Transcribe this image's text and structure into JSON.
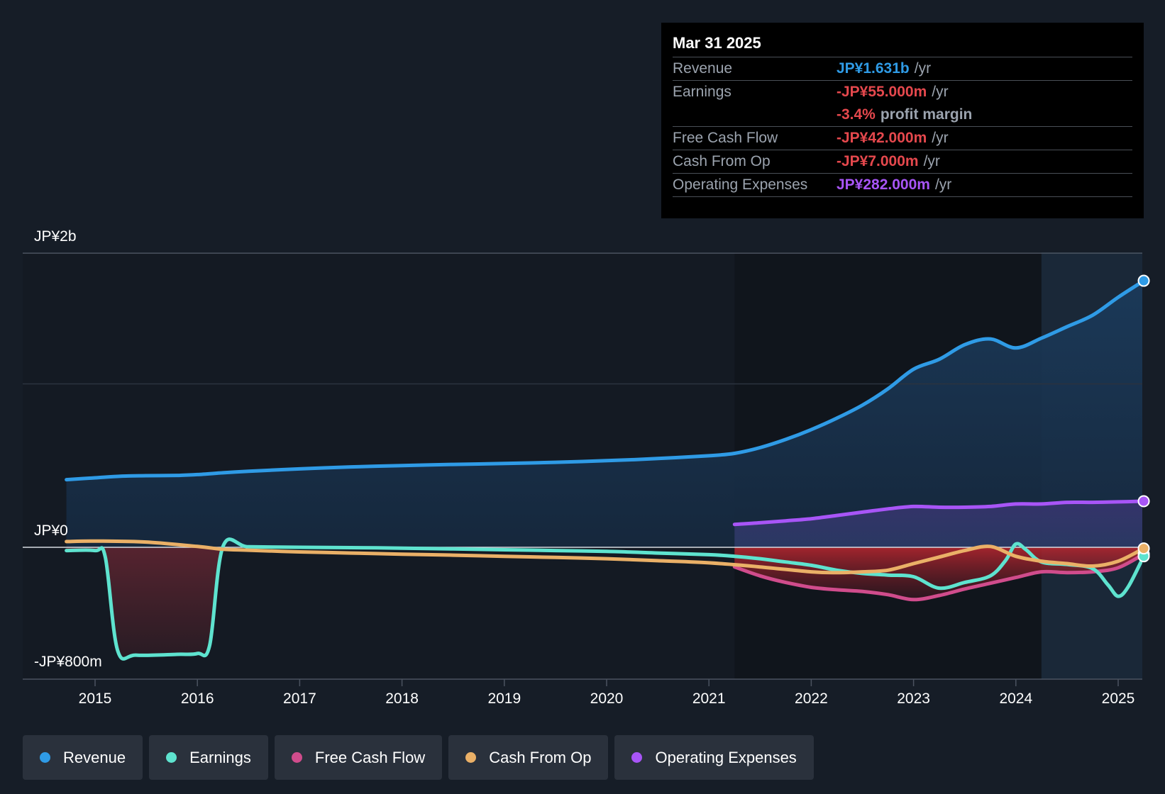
{
  "tooltip": {
    "date": "Mar 31 2025",
    "rows": [
      {
        "label": "Revenue",
        "value": "JP¥1.631b",
        "unit": "/yr",
        "color": "#2f9be6"
      },
      {
        "label": "Earnings",
        "value": "-JP¥55.000m",
        "unit": "/yr",
        "color": "#e5484d"
      },
      {
        "label": "",
        "value": "-3.4%",
        "unit": "profit margin",
        "color": "#e5484d"
      },
      {
        "label": "Free Cash Flow",
        "value": "-JP¥42.000m",
        "unit": "/yr",
        "color": "#e5484d"
      },
      {
        "label": "Cash From Op",
        "value": "-JP¥7.000m",
        "unit": "/yr",
        "color": "#e5484d"
      },
      {
        "label": "Operating Expenses",
        "value": "JP¥282.000m",
        "unit": "/yr",
        "color": "#a855f7"
      }
    ]
  },
  "legend": [
    {
      "label": "Revenue",
      "color": "#2f9be6"
    },
    {
      "label": "Earnings",
      "color": "#5ee3cf"
    },
    {
      "label": "Free Cash Flow",
      "color": "#d04c8c"
    },
    {
      "label": "Cash From Op",
      "color": "#eab067"
    },
    {
      "label": "Operating Expenses",
      "color": "#a855f7"
    }
  ],
  "chart_data": {
    "type": "line",
    "y_tick_labels": [
      "JP¥2b",
      "JP¥0",
      "-JP¥800m"
    ],
    "ylim": [
      -800,
      1800
    ],
    "y_unit": "JP¥m",
    "x_tick_labels": [
      "2015",
      "2016",
      "2017",
      "2018",
      "2019",
      "2020",
      "2021",
      "2022",
      "2023",
      "2024",
      "2025"
    ],
    "xlim": [
      2014.7,
      2025.25
    ],
    "forecast_shade_start": 2024.25,
    "grid": "horizontal",
    "series": [
      {
        "name": "Revenue",
        "color": "#2f9be6",
        "x": [
          2014.72,
          2015.0,
          2015.25,
          2015.5,
          2015.8,
          2016.0,
          2016.25,
          2016.5,
          2017.0,
          2017.5,
          2018.0,
          2018.5,
          2019.0,
          2019.5,
          2020.0,
          2020.5,
          2021.0,
          2021.25,
          2021.5,
          2021.75,
          2022.0,
          2022.25,
          2022.5,
          2022.75,
          2023.0,
          2023.25,
          2023.5,
          2023.75,
          2024.0,
          2024.25,
          2024.5,
          2024.75,
          2025.0,
          2025.25
        ],
        "y": [
          414,
          425,
          435,
          438,
          440,
          445,
          456,
          465,
          480,
          492,
          500,
          507,
          513,
          520,
          530,
          543,
          560,
          575,
          610,
          660,
          720,
          790,
          870,
          970,
          1090,
          1150,
          1240,
          1275,
          1220,
          1280,
          1350,
          1420,
          1530,
          1631
        ]
      },
      {
        "name": "Earnings",
        "color": "#5ee3cf",
        "x": [
          2014.72,
          2015.0,
          2015.1,
          2015.22,
          2015.4,
          2015.8,
          2016.0,
          2016.12,
          2016.25,
          2016.5,
          2017.0,
          2017.5,
          2018.0,
          2018.5,
          2019.0,
          2019.5,
          2020.0,
          2020.5,
          2021.0,
          2021.25,
          2021.5,
          2021.75,
          2022.0,
          2022.25,
          2022.5,
          2022.75,
          2023.0,
          2023.25,
          2023.5,
          2023.75,
          2023.9,
          2024.0,
          2024.1,
          2024.25,
          2024.5,
          2024.75,
          2024.9,
          2025.0,
          2025.1,
          2025.25
        ],
        "y": [
          -20,
          -20,
          -60,
          -630,
          -660,
          -655,
          -650,
          -600,
          5,
          3,
          0,
          -2,
          -5,
          -10,
          -15,
          -20,
          -25,
          -35,
          -45,
          -55,
          -70,
          -90,
          -110,
          -140,
          -160,
          -170,
          -180,
          -250,
          -215,
          -175,
          -80,
          20,
          -15,
          -90,
          -105,
          -130,
          -230,
          -300,
          -240,
          -55
        ]
      },
      {
        "name": "Free Cash Flow",
        "color": "#d04c8c",
        "x": [
          2021.25,
          2021.5,
          2021.75,
          2022.0,
          2022.25,
          2022.5,
          2022.75,
          2023.0,
          2023.25,
          2023.5,
          2023.75,
          2024.0,
          2024.25,
          2024.5,
          2024.75,
          2025.0,
          2025.25
        ],
        "y": [
          -120,
          -175,
          -215,
          -245,
          -260,
          -270,
          -290,
          -320,
          -295,
          -255,
          -220,
          -185,
          -150,
          -155,
          -150,
          -125,
          -42
        ]
      },
      {
        "name": "Cash From Op",
        "color": "#eab067",
        "x": [
          2014.72,
          2015.0,
          2015.5,
          2016.0,
          2016.25,
          2016.5,
          2017.0,
          2017.5,
          2018.0,
          2018.5,
          2019.0,
          2019.5,
          2020.0,
          2020.5,
          2021.0,
          2021.5,
          2022.0,
          2022.25,
          2022.5,
          2022.75,
          2023.0,
          2023.25,
          2023.5,
          2023.75,
          2024.0,
          2024.25,
          2024.5,
          2024.75,
          2025.0,
          2025.25
        ],
        "y": [
          35,
          38,
          32,
          5,
          -12,
          -18,
          -28,
          -35,
          -42,
          -48,
          -55,
          -62,
          -70,
          -82,
          -95,
          -120,
          -150,
          -155,
          -150,
          -140,
          -100,
          -60,
          -20,
          5,
          -55,
          -85,
          -100,
          -115,
          -85,
          -7
        ]
      },
      {
        "name": "Operating Expenses",
        "color": "#a855f7",
        "x": [
          2021.25,
          2021.5,
          2021.75,
          2022.0,
          2022.25,
          2022.5,
          2022.75,
          2023.0,
          2023.25,
          2023.5,
          2023.75,
          2024.0,
          2024.25,
          2024.5,
          2024.75,
          2025.0,
          2025.25
        ],
        "y": [
          140,
          150,
          162,
          175,
          195,
          215,
          235,
          250,
          245,
          245,
          250,
          265,
          265,
          275,
          275,
          278,
          282
        ]
      }
    ]
  }
}
